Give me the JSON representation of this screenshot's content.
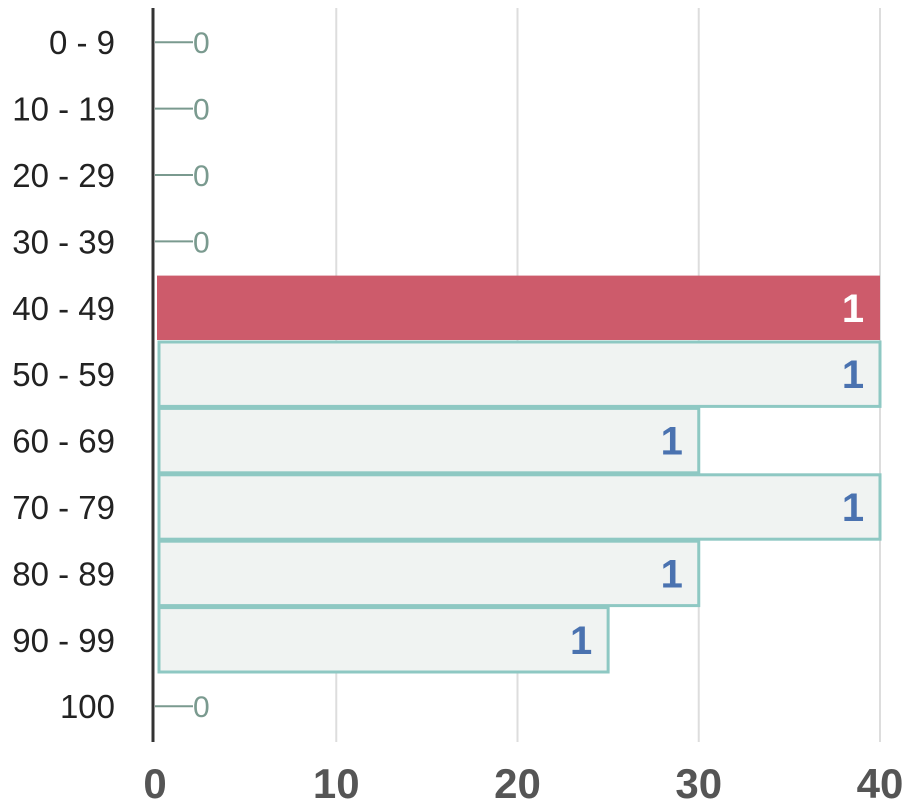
{
  "chart_data": {
    "type": "bar",
    "orientation": "horizontal",
    "categories": [
      "0 - 9",
      "10 - 19",
      "20 - 29",
      "30 - 39",
      "40 - 49",
      "50 - 59",
      "60 - 69",
      "70 - 79",
      "80 - 89",
      "90 - 99",
      "100"
    ],
    "values": [
      0,
      0,
      0,
      0,
      40,
      40,
      30,
      40,
      30,
      25,
      0
    ],
    "data_labels": [
      "0",
      "0",
      "0",
      "0",
      "1",
      "1",
      "1",
      "1",
      "1",
      "1",
      "0"
    ],
    "highlighted_category": "40 - 49",
    "x_ticks": [
      "0",
      "10",
      "20",
      "30",
      "40"
    ],
    "xlim": [
      0,
      40
    ],
    "grid": "vertical",
    "title": "",
    "xlabel": "",
    "ylabel": ""
  },
  "colors": {
    "highlight_bar": "#cd5b6b",
    "bar_fill": "#f0f3f2",
    "bar_stroke": "#8ec8c3",
    "grid": "#dddddd",
    "axis": "#333333",
    "bar_label": "#4a72b0",
    "zero_label": "#7a9a8f"
  }
}
